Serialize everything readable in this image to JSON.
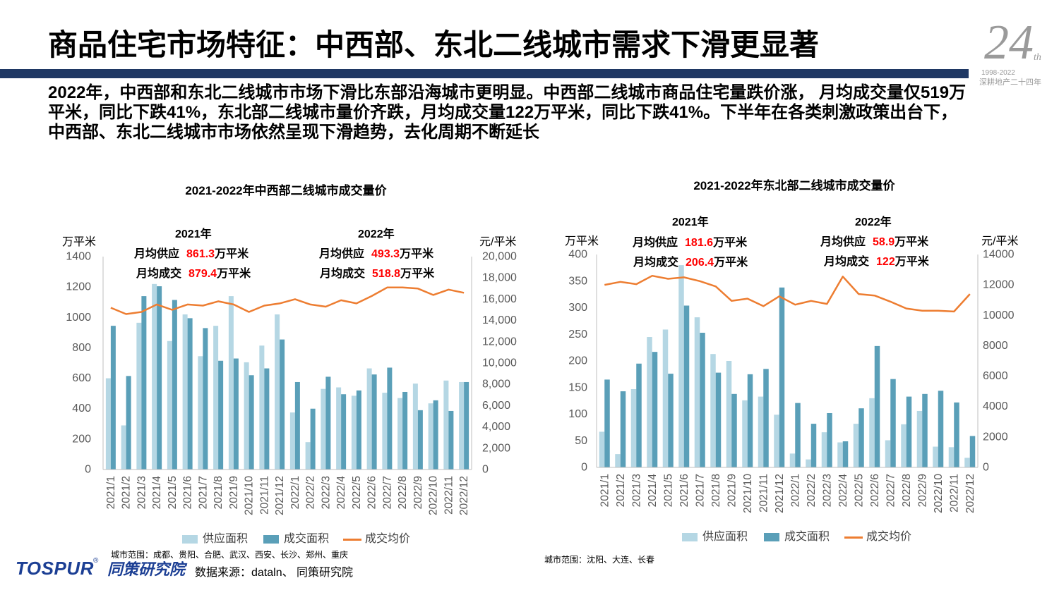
{
  "header": {
    "title": "商品住宅市场特征：中西部、东北二线城市需求下滑更显著"
  },
  "logo": {
    "number": "24",
    "suffix": "th",
    "years": "1998-2022",
    "slogan": "深耕地产二十四年"
  },
  "summary": "2022年，中西部和东北二线城市市场下滑比东部沿海城市更明显。中西部二线城市商品住宅量跌价涨， 月均成交量仅519万平米，同比下跌41%，东北部二线城市量价齐跌，月均成交量122万平米，同比下跌41%。下半年在各类刺激政策出台下，中西部、东北二线城市市场依然呈现下滑趋势，去化周期不断延长",
  "theme": {
    "title_bar": "#1f3864",
    "highlight": "#ff0000",
    "brand": "#1c3f94",
    "logo_grey": "#9a9a9a"
  },
  "chart_data": [
    {
      "type": "bar",
      "title": "2021-2022年中西部二线城市成交量价",
      "categories": [
        "2021/1",
        "2021/2",
        "2021/3",
        "2021/4",
        "2021/5",
        "2021/6",
        "2021/7",
        "2021/8",
        "2021/9",
        "2021/10",
        "2021/11",
        "2021/12",
        "2022/1",
        "2022/2",
        "2022/3",
        "2022/4",
        "2022/5",
        "2022/6",
        "2022/7",
        "2022/8",
        "2022/9",
        "2022/10",
        "2022/11",
        "2022/12"
      ],
      "ylabel": "万平米",
      "y2label": "元/平米",
      "ylim": [
        0,
        1400
      ],
      "y2lim": [
        0,
        20000
      ],
      "y_ticks": [
        "0",
        "200",
        "400",
        "600",
        "800",
        "1000",
        "1200",
        "1400"
      ],
      "y2_ticks": [
        "0",
        "2,000",
        "4,000",
        "6,000",
        "8,000",
        "10,000",
        "12,000",
        "14,000",
        "16,000",
        "18,000",
        "20,000"
      ],
      "grid": false,
      "legend": "bottom",
      "series": [
        {
          "name": "供应面积",
          "type": "bar",
          "axis": "left",
          "color": "#b5d7e4",
          "values": [
            600,
            290,
            965,
            1220,
            845,
            1020,
            745,
            945,
            1140,
            705,
            815,
            1020,
            375,
            180,
            530,
            540,
            485,
            665,
            505,
            470,
            565,
            435,
            585,
            575
          ]
        },
        {
          "name": "成交面积",
          "type": "bar",
          "axis": "left",
          "color": "#5a9fb8",
          "values": [
            945,
            615,
            1140,
            1205,
            1115,
            995,
            930,
            715,
            730,
            620,
            665,
            855,
            575,
            400,
            610,
            495,
            520,
            625,
            670,
            510,
            390,
            455,
            385,
            575
          ]
        },
        {
          "name": "成交均价",
          "type": "line",
          "axis": "right",
          "color": "#ed7d31",
          "values": [
            15200,
            14600,
            14800,
            15500,
            15000,
            15500,
            15400,
            15800,
            15500,
            14800,
            15400,
            15600,
            16000,
            15500,
            15300,
            15900,
            15600,
            16300,
            17100,
            17100,
            17000,
            16400,
            16900,
            16600
          ]
        }
      ],
      "annotations": [
        {
          "year": "2021年",
          "rows": [
            {
              "label": "月均供应",
              "value": "861.3",
              "unit": "万平米"
            },
            {
              "label": "月均成交",
              "value": "879.4",
              "unit": "万平米"
            }
          ]
        },
        {
          "year": "2022年",
          "rows": [
            {
              "label": "月均供应",
              "value": "493.3",
              "unit": "万平米"
            },
            {
              "label": "月均成交",
              "value": "518.8",
              "unit": "万平米"
            }
          ]
        }
      ],
      "note": "城市范围：成都、贵阳、合肥、武汉、西安、长沙、郑州、重庆"
    },
    {
      "type": "bar",
      "title": "2021-2022年东北部二线城市成交量价",
      "categories": [
        "2021/1",
        "2021/2",
        "2021/3",
        "2021/4",
        "2021/5",
        "2021/6",
        "2021/7",
        "2021/8",
        "2021/9",
        "2021/10",
        "2021/11",
        "2021/12",
        "2022/1",
        "2022/2",
        "2022/3",
        "2022/4",
        "2022/5",
        "2022/6",
        "2022/7",
        "2022/8",
        "2022/9",
        "2022/10",
        "2022/11",
        "2022/12"
      ],
      "ylabel": "万平米",
      "y2label": "元/平米",
      "ylim": [
        0,
        400
      ],
      "y2lim": [
        0,
        14000
      ],
      "y_ticks": [
        "0",
        "50",
        "100",
        "150",
        "200",
        "250",
        "300",
        "350",
        "400"
      ],
      "y2_ticks": [
        "0",
        "2000",
        "4000",
        "6000",
        "8000",
        "10000",
        "12000",
        "14000"
      ],
      "grid": false,
      "legend": "bottom",
      "series": [
        {
          "name": "供应面积",
          "type": "bar",
          "axis": "left",
          "color": "#b5d7e4",
          "values": [
            67,
            25,
            147,
            245,
            259,
            380,
            282,
            213,
            200,
            126,
            133,
            99,
            26,
            15,
            66,
            47,
            82,
            130,
            51,
            81,
            106,
            39,
            38,
            18
          ]
        },
        {
          "name": "成交面积",
          "type": "bar",
          "axis": "left",
          "color": "#5a9fb8",
          "values": [
            165,
            143,
            195,
            217,
            176,
            304,
            253,
            178,
            138,
            175,
            185,
            338,
            121,
            82,
            102,
            49,
            111,
            228,
            166,
            133,
            138,
            144,
            122,
            59
          ]
        },
        {
          "name": "成交均价",
          "type": "line",
          "axis": "right",
          "color": "#ed7d31",
          "values": [
            12000,
            12200,
            12050,
            12600,
            12400,
            12500,
            12250,
            11900,
            10950,
            11100,
            10600,
            11250,
            10700,
            10950,
            10750,
            12550,
            11400,
            11300,
            10900,
            10450,
            10300,
            10300,
            10250,
            11400
          ]
        }
      ],
      "annotations": [
        {
          "year": "2021年",
          "rows": [
            {
              "label": "月均供应",
              "value": "181.6",
              "unit": "万平米"
            },
            {
              "label": "月均成交",
              "value": "206.4",
              "unit": "万平米"
            }
          ]
        },
        {
          "year": "2022年",
          "rows": [
            {
              "label": "月均供应",
              "value": "58.9",
              "unit": "万平米"
            },
            {
              "label": "月均成交",
              "value": "122",
              "unit": "万平米"
            }
          ]
        }
      ],
      "note": "城市范围：沈阳、大连、长春"
    }
  ],
  "footer": {
    "brand": "TOSPUR",
    "registered": "®",
    "brand_cn": "同策研究院",
    "source": "数据来源：dataln、 同策研究院"
  }
}
